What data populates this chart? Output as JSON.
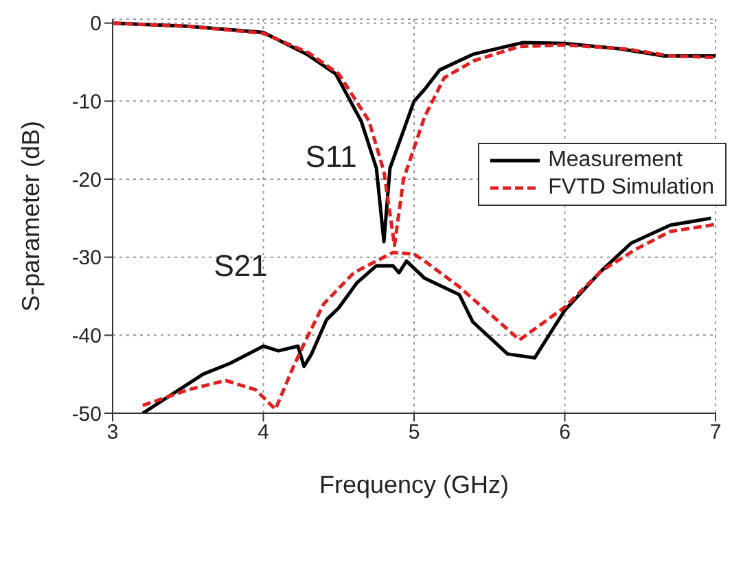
{
  "chart_data": {
    "type": "line",
    "xlabel": "Frequency (GHz)",
    "ylabel": "S-parameter (dB)",
    "xlim": [
      3,
      7
    ],
    "ylim": [
      -50,
      0.5
    ],
    "xticks": [
      3,
      4,
      5,
      6,
      7
    ],
    "yticks": [
      -50,
      -40,
      -30,
      -20,
      -10,
      0
    ],
    "grid": true,
    "legend": "right",
    "marker": "none",
    "annotations": [
      "S11",
      "S21"
    ],
    "series": [
      {
        "name": "Measurement",
        "color": "#000000",
        "line_style": "solid",
        "x": [
          3,
          3.5,
          4,
          4.29,
          4.48,
          4.65,
          4.75,
          4.8,
          4.84,
          5,
          5.07,
          5.17,
          5.39,
          5.72,
          6,
          6.37,
          6.66,
          7
        ],
        "values": [
          0,
          -0.4,
          -1.2,
          -4,
          -6.5,
          -12.6,
          -18.6,
          -28,
          -18.6,
          -10,
          -8.5,
          -6,
          -4,
          -2.5,
          -2.6,
          -3.3,
          -4.2,
          -4.2
        ]
      },
      {
        "name": "FVTD Simulation",
        "color": "#e02020",
        "line_style": "dashed",
        "x": [
          3,
          3.5,
          4,
          4.3,
          4.5,
          4.7,
          4.8,
          4.87,
          4.93,
          5,
          5.07,
          5.2,
          5.4,
          5.7,
          6,
          6.4,
          6.7,
          7
        ],
        "values": [
          0,
          -0.4,
          -1.3,
          -3.8,
          -6.5,
          -12.5,
          -19,
          -28.5,
          -20,
          -16,
          -12,
          -7,
          -4.8,
          -3,
          -2.8,
          -3.3,
          -4.2,
          -4.4
        ]
      },
      {
        "color": "#000000",
        "line_style": "solid",
        "x": [
          3.2,
          3.4,
          3.6,
          3.78,
          4,
          4.1,
          4.23,
          4.27,
          4.32,
          4.42,
          4.5,
          4.62,
          4.75,
          4.86,
          4.9,
          4.95,
          5.07,
          5.3,
          5.39,
          5.62,
          5.8,
          6,
          6.24,
          6.44,
          6.7,
          6.97
        ],
        "values": [
          -50,
          -47.5,
          -45,
          -43.6,
          -41.4,
          -42,
          -41.4,
          -44,
          -42.4,
          -38,
          -36.5,
          -33.3,
          -31.1,
          -31.1,
          -32,
          -30.5,
          -32.7,
          -34.8,
          -38.3,
          -42.4,
          -42.9,
          -36.8,
          -31.8,
          -28.2,
          -25.9,
          -25
        ]
      },
      {
        "color": "#e02020",
        "line_style": "dashed",
        "x": [
          3.2,
          3.5,
          3.75,
          3.95,
          4.08,
          4.2,
          4.29,
          4.4,
          4.6,
          4.86,
          5,
          5.07,
          5.3,
          5.7,
          6,
          6.24,
          6.47,
          6.7,
          7
        ],
        "values": [
          -49,
          -47,
          -45.8,
          -47,
          -49.5,
          -44,
          -40.3,
          -36,
          -32,
          -29.4,
          -29.6,
          -30.5,
          -33.8,
          -40.6,
          -36.4,
          -31.8,
          -29,
          -26.7,
          -25.8
        ]
      }
    ]
  }
}
